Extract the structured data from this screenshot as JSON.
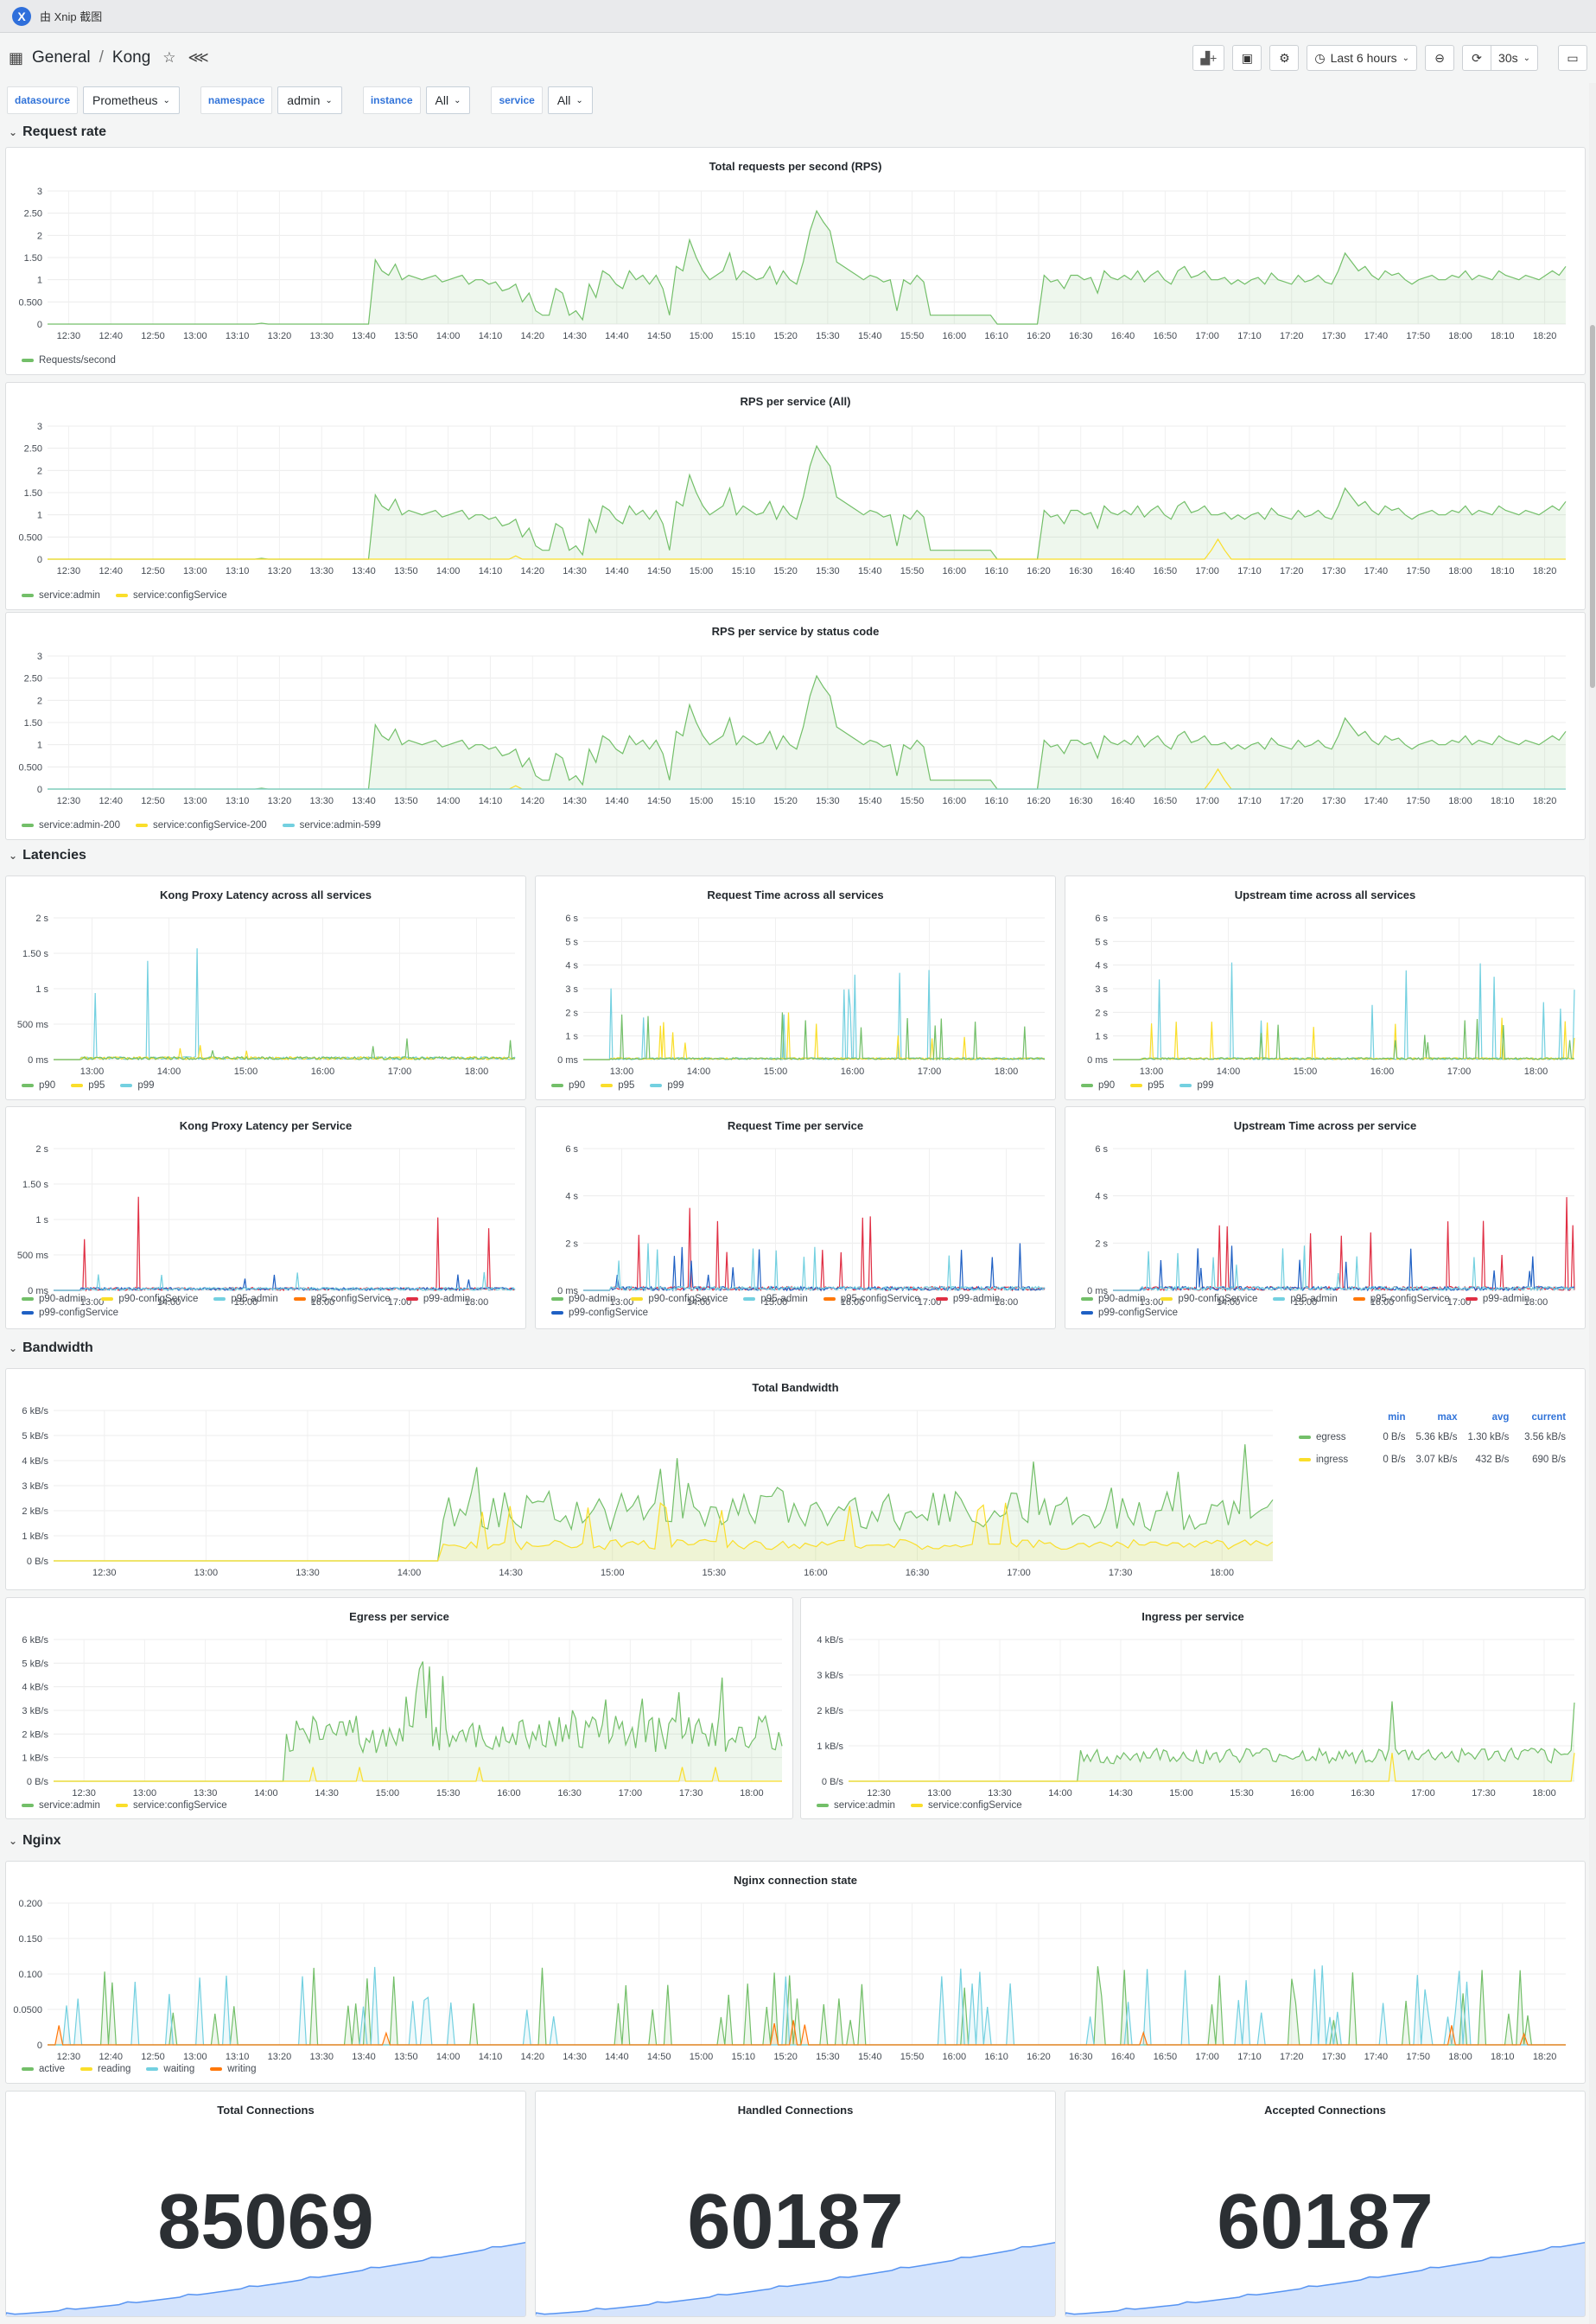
{
  "appbar": {
    "title": "由 Xnip 截图",
    "logo": "X"
  },
  "nav": {
    "folder": "General",
    "sep": "/",
    "dashboard": "Kong",
    "time_range": "Last 6 hours",
    "refresh": "30s"
  },
  "vars": [
    {
      "label": "datasource",
      "value": "Prometheus"
    },
    {
      "label": "namespace",
      "value": "admin"
    },
    {
      "label": "instance",
      "value": "All"
    },
    {
      "label": "service",
      "value": "All"
    }
  ],
  "rows": {
    "request_rate": "Request rate",
    "latencies": "Latencies",
    "bandwidth": "Bandwidth",
    "nginx": "Nginx"
  },
  "colors": {
    "green": "#73bf69",
    "yellow": "#fade2a",
    "cyan": "#5794f2",
    "teal": "#73d0e0",
    "red": "#e02f44",
    "orange": "#ff780a",
    "blue": "#1f60c4",
    "stat": "#5794f2"
  },
  "panels": {
    "rps_total": {
      "title": "Total requests per second (RPS)",
      "legend": [
        "Requests/second"
      ]
    },
    "rps_service": {
      "title": "RPS per service (All)",
      "legend": [
        "service:admin",
        "service:configService"
      ]
    },
    "rps_status": {
      "title": "RPS per service by status code",
      "legend": [
        "service:admin-200",
        "service:configService-200",
        "service:admin-599"
      ]
    },
    "lat_proxy": {
      "title": "Kong Proxy Latency across all services",
      "legend": [
        "p90",
        "p95",
        "p99"
      ]
    },
    "lat_request": {
      "title": "Request Time across all services",
      "legend": [
        "p90",
        "p95",
        "p99"
      ]
    },
    "lat_upstream": {
      "title": "Upstream time across all services",
      "legend": [
        "p90",
        "p95",
        "p99"
      ]
    },
    "lat_proxy_svc": {
      "title": "Kong Proxy Latency per Service",
      "legend": [
        "p90-admin",
        "p90-configService",
        "p95-admin",
        "p95-configService",
        "p99-admin",
        "p99-configService"
      ]
    },
    "lat_request_svc": {
      "title": "Request Time per service",
      "legend": [
        "p90-admin",
        "p90-configService",
        "p95-admin",
        "p95-configService",
        "p99-admin",
        "p99-configService"
      ]
    },
    "lat_upstream_svc": {
      "title": "Upstream Time across per service",
      "legend": [
        "p90-admin",
        "p90-configService",
        "p95-admin",
        "p95-configService",
        "p99-admin",
        "p99-configService"
      ]
    },
    "bw_total": {
      "title": "Total Bandwidth",
      "headers": [
        "min",
        "max",
        "avg",
        "current"
      ],
      "rows": [
        {
          "name": "egress",
          "min": "0 B/s",
          "max": "5.36 kB/s",
          "avg": "1.30 kB/s",
          "current": "3.56 kB/s"
        },
        {
          "name": "ingress",
          "min": "0 B/s",
          "max": "3.07 kB/s",
          "avg": "432 B/s",
          "current": "690 B/s"
        }
      ]
    },
    "bw_egress": {
      "title": "Egress per service",
      "legend": [
        "service:admin",
        "service:configService"
      ]
    },
    "bw_ingress": {
      "title": "Ingress per service",
      "legend": [
        "service:admin",
        "service:configService"
      ]
    },
    "nginx_conn": {
      "title": "Nginx connection state",
      "legend": [
        "active",
        "reading",
        "waiting",
        "writing"
      ]
    },
    "stat_total": {
      "title": "Total Connections",
      "value": "85069"
    },
    "stat_handled": {
      "title": "Handled Connections",
      "value": "60187"
    },
    "stat_accepted": {
      "title": "Accepted Connections",
      "value": "60187"
    }
  },
  "chart_data": [
    {
      "id": "rps_total",
      "type": "area",
      "ylim": [
        0,
        3
      ],
      "yticks": [
        "0",
        "0.500",
        "1",
        "1.50",
        "2",
        "2.50",
        "3"
      ],
      "xticks": [
        "12:30",
        "12:40",
        "12:50",
        "13:00",
        "13:10",
        "13:20",
        "13:30",
        "13:40",
        "13:50",
        "14:00",
        "14:10",
        "14:20",
        "14:30",
        "14:40",
        "14:50",
        "15:00",
        "15:10",
        "15:20",
        "15:30",
        "15:40",
        "15:50",
        "16:00",
        "16:10",
        "16:20",
        "16:30",
        "16:40",
        "16:50",
        "17:00",
        "17:10",
        "17:20",
        "17:30",
        "17:40",
        "17:50",
        "18:00",
        "18:10",
        "18:20"
      ],
      "series": [
        {
          "name": "Requests/second",
          "color": "#73bf69",
          "values": [
            0,
            0,
            0,
            0,
            0,
            0,
            0,
            0,
            0,
            0,
            0,
            0,
            0,
            0,
            0,
            0,
            0,
            0,
            0,
            0,
            0,
            0,
            0,
            0,
            0,
            0,
            0,
            0,
            0,
            0,
            0,
            0,
            0.02,
            0,
            0,
            0,
            0,
            0,
            0,
            0,
            0,
            0,
            0,
            0,
            0,
            0,
            0,
            0,
            0,
            1.45,
            1.2,
            1.1,
            1.35,
            1.0,
            1.1,
            1.05,
            1.0,
            1.05,
            1.1,
            0.95,
            1.0,
            1.05,
            1.1,
            0.9,
            1.0,
            1.0,
            0.9,
            0.95,
            0.75,
            0.8,
            0.9,
            0.5,
            0.7,
            0.3,
            0.2,
            0.2,
            0.8,
            0.7,
            0.2,
            0.3,
            0.1,
            0.9,
            0.6,
            1.2,
            1.1,
            0.9,
            0.8,
            1.2,
            1.0,
            1.1,
            0.9,
            1.1,
            0.8,
            0.2,
            1.3,
            1.2,
            1.9,
            1.5,
            1.2,
            1.0,
            1.1,
            1.2,
            1.6,
            1.0,
            1.2,
            1.1,
            1.0,
            1.05,
            1.3,
            0.9,
            1.2,
            1.0,
            0.9,
            1.4,
            2.1,
            2.55,
            2.3,
            2.1,
            1.4,
            1.3,
            1.2,
            1.1,
            1.0,
            1.1,
            1.05,
            0.95,
            1.0,
            0.3,
            1.0,
            0.9,
            1.1,
            0.95,
            0.2,
            0.2,
            0.2,
            0.2,
            0.2,
            0.2,
            0.2,
            0.2,
            0.2,
            0.2,
            0,
            0,
            0,
            0,
            0,
            0,
            0,
            1.1,
            0.95,
            1.0,
            0.8,
            1.1,
            1.1,
            1.0,
            1.05,
            0.7,
            1.2,
            1.05,
            1.0,
            1.1,
            1.0,
            1.2,
            0.95,
            1.1,
            1.2,
            1.0,
            0.9,
            1.2,
            1.3,
            1.05,
            1.1,
            1.2,
            1.0,
            1.0,
            1.05,
            0.9,
            1.0,
            0.9,
            1.0,
            1.05,
            0.9,
            1.15,
            1.0,
            0.95,
            0.9,
            1.1,
            0.95,
            1.0,
            1.1,
            0.95,
            0.9,
            1.2,
            1.6,
            1.4,
            1.2,
            1.3,
            1.1,
            1.0,
            1.2,
            1.1,
            1.15,
            1.0,
            0.9,
            1.0,
            1.05,
            1.1,
            1.0,
            1.0,
            1.1,
            1.05,
            1.2,
            1.0,
            1.1,
            1.05,
            1.0,
            1.2,
            1.1,
            1.05,
            1.0,
            1.1,
            1.05,
            1.0,
            1.1,
            1.2,
            1.1,
            1.3
          ]
        }
      ]
    },
    {
      "id": "rps_service",
      "type": "area",
      "ylim": [
        0,
        3
      ],
      "yticks": [
        "0",
        "0.500",
        "1",
        "1.50",
        "2",
        "2.50",
        "3"
      ],
      "xticks": [
        "12:30",
        "12:40",
        "12:50",
        "13:00",
        "13:10",
        "13:20",
        "13:30",
        "13:40",
        "13:50",
        "14:00",
        "14:10",
        "14:20",
        "14:30",
        "14:40",
        "14:50",
        "15:00",
        "15:10",
        "15:20",
        "15:30",
        "15:40",
        "15:50",
        "16:00",
        "16:10",
        "16:20",
        "16:30",
        "16:40",
        "16:50",
        "17:00",
        "17:10",
        "17:20",
        "17:30",
        "17:40",
        "17:50",
        "18:00",
        "18:10",
        "18:20"
      ]
    },
    {
      "id": "rps_status",
      "type": "area",
      "ylim": [
        0,
        3
      ],
      "yticks": [
        "0",
        "0.500",
        "1",
        "1.50",
        "2",
        "2.50",
        "3"
      ],
      "xticks": [
        "12:30",
        "12:40",
        "12:50",
        "13:00",
        "13:10",
        "13:20",
        "13:30",
        "13:40",
        "13:50",
        "14:00",
        "14:10",
        "14:20",
        "14:30",
        "14:40",
        "14:50",
        "15:00",
        "15:10",
        "15:20",
        "15:30",
        "15:40",
        "15:50",
        "16:00",
        "16:10",
        "16:20",
        "16:30",
        "16:40",
        "16:50",
        "17:00",
        "17:10",
        "17:20",
        "17:30",
        "17:40",
        "17:50",
        "18:00",
        "18:10",
        "18:20"
      ]
    },
    {
      "id": "lat_proxy",
      "type": "line",
      "yticks": [
        "0 ms",
        "500 ms",
        "1 s",
        "1.50 s",
        "2 s"
      ],
      "xticks": [
        "13:00",
        "14:00",
        "15:00",
        "16:00",
        "17:00",
        "18:00"
      ]
    },
    {
      "id": "lat_request",
      "type": "line",
      "yticks": [
        "0 ms",
        "1 s",
        "2 s",
        "3 s",
        "4 s",
        "5 s",
        "6 s"
      ],
      "xticks": [
        "13:00",
        "14:00",
        "15:00",
        "16:00",
        "17:00",
        "18:00"
      ]
    },
    {
      "id": "lat_upstream",
      "type": "line",
      "yticks": [
        "0 ms",
        "1 s",
        "2 s",
        "3 s",
        "4 s",
        "5 s",
        "6 s"
      ],
      "xticks": [
        "13:00",
        "14:00",
        "15:00",
        "16:00",
        "17:00",
        "18:00"
      ]
    },
    {
      "id": "lat_proxy_svc",
      "type": "line",
      "yticks": [
        "0 ms",
        "500 ms",
        "1 s",
        "1.50 s",
        "2 s"
      ],
      "xticks": [
        "13:00",
        "14:00",
        "15:00",
        "16:00",
        "17:00",
        "18:00"
      ]
    },
    {
      "id": "lat_request_svc",
      "type": "line",
      "yticks": [
        "0 ms",
        "2 s",
        "4 s",
        "6 s"
      ],
      "xticks": [
        "13:00",
        "14:00",
        "15:00",
        "16:00",
        "17:00",
        "18:00"
      ]
    },
    {
      "id": "lat_upstream_svc",
      "type": "line",
      "yticks": [
        "0 ms",
        "2 s",
        "4 s",
        "6 s"
      ],
      "xticks": [
        "13:00",
        "14:00",
        "15:00",
        "16:00",
        "17:00",
        "18:00"
      ]
    },
    {
      "id": "bw_total",
      "type": "area",
      "yticks": [
        "0 B/s",
        "1 kB/s",
        "2 kB/s",
        "3 kB/s",
        "4 kB/s",
        "5 kB/s",
        "6 kB/s"
      ],
      "xticks": [
        "12:30",
        "13:00",
        "13:30",
        "14:00",
        "14:30",
        "15:00",
        "15:30",
        "16:00",
        "16:30",
        "17:00",
        "17:30",
        "18:00"
      ]
    },
    {
      "id": "bw_egress",
      "type": "area",
      "yticks": [
        "0 B/s",
        "1 kB/s",
        "2 kB/s",
        "3 kB/s",
        "4 kB/s",
        "5 kB/s",
        "6 kB/s"
      ],
      "xticks": [
        "12:30",
        "13:00",
        "13:30",
        "14:00",
        "14:30",
        "15:00",
        "15:30",
        "16:00",
        "16:30",
        "17:00",
        "17:30",
        "18:00"
      ]
    },
    {
      "id": "bw_ingress",
      "type": "area",
      "yticks": [
        "0 B/s",
        "1 kB/s",
        "2 kB/s",
        "3 kB/s",
        "4 kB/s"
      ],
      "xticks": [
        "12:30",
        "13:00",
        "13:30",
        "14:00",
        "14:30",
        "15:00",
        "15:30",
        "16:00",
        "16:30",
        "17:00",
        "17:30",
        "18:00"
      ]
    },
    {
      "id": "nginx_conn",
      "type": "line",
      "yticks": [
        "0",
        "0.0500",
        "0.100",
        "0.150",
        "0.200"
      ],
      "xticks": [
        "12:30",
        "12:40",
        "12:50",
        "13:00",
        "13:10",
        "13:20",
        "13:30",
        "13:40",
        "13:50",
        "14:00",
        "14:10",
        "14:20",
        "14:30",
        "14:40",
        "14:50",
        "15:00",
        "15:10",
        "15:20",
        "15:30",
        "15:40",
        "15:50",
        "16:00",
        "16:10",
        "16:20",
        "16:30",
        "16:40",
        "16:50",
        "17:00",
        "17:10",
        "17:20",
        "17:30",
        "17:40",
        "17:50",
        "18:00",
        "18:10",
        "18:20"
      ]
    }
  ]
}
